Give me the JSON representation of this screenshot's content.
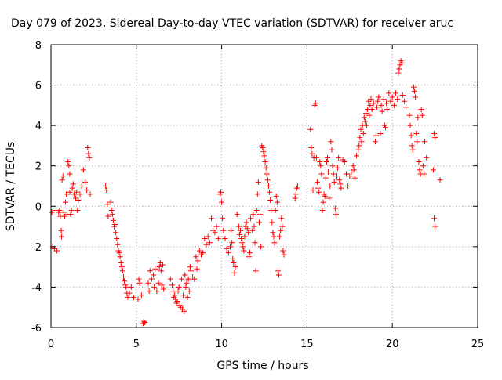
{
  "chart_data": {
    "type": "scatter",
    "title": "Day 079 of 2023, Sidereal Day-to-day VTEC variation (SDTVAR) for receiver aruc",
    "xlabel": "GPS time / hours",
    "ylabel": "SDTVAR / TECUs",
    "xlim": [
      0,
      25
    ],
    "ylim": [
      -6,
      8
    ],
    "xticks": [
      "0",
      "5",
      "10",
      "15",
      "20",
      "25"
    ],
    "yticks": [
      "-6",
      "-4",
      "-2",
      "0",
      "2",
      "4",
      "6",
      "8"
    ],
    "grid": true,
    "marker": "plus",
    "color": "#ff0000",
    "series": [
      {
        "name": "SDTVAR",
        "points": [
          [
            0.05,
            -0.3
          ],
          [
            0.1,
            -2.0
          ],
          [
            0.2,
            -2.1
          ],
          [
            0.3,
            -0.2
          ],
          [
            0.35,
            -2.2
          ],
          [
            0.45,
            -0.3
          ],
          [
            0.5,
            -0.2
          ],
          [
            0.55,
            -0.5
          ],
          [
            0.6,
            -1.2
          ],
          [
            0.62,
            -1.5
          ],
          [
            0.65,
            1.3
          ],
          [
            0.7,
            1.5
          ],
          [
            0.75,
            -0.3
          ],
          [
            0.8,
            -0.5
          ],
          [
            0.85,
            0.2
          ],
          [
            0.9,
            0.6
          ],
          [
            0.95,
            -0.4
          ],
          [
            1.0,
            2.2
          ],
          [
            1.05,
            2.0
          ],
          [
            1.1,
            1.6
          ],
          [
            1.1,
            0.7
          ],
          [
            1.15,
            -0.4
          ],
          [
            1.2,
            -0.2
          ],
          [
            1.25,
            0.9
          ],
          [
            1.3,
            1.1
          ],
          [
            1.35,
            0.6
          ],
          [
            1.4,
            0.8
          ],
          [
            1.45,
            0.4
          ],
          [
            1.5,
            0.7
          ],
          [
            1.55,
            -0.2
          ],
          [
            1.6,
            0.3
          ],
          [
            1.7,
            0.6
          ],
          [
            1.8,
            1.0
          ],
          [
            1.9,
            1.8
          ],
          [
            2.0,
            1.2
          ],
          [
            2.1,
            0.8
          ],
          [
            2.15,
            2.9
          ],
          [
            2.2,
            2.6
          ],
          [
            2.25,
            2.4
          ],
          [
            2.3,
            0.6
          ],
          [
            3.2,
            1.0
          ],
          [
            3.25,
            0.8
          ],
          [
            3.3,
            0.1
          ],
          [
            3.35,
            -0.5
          ],
          [
            3.5,
            0.2
          ],
          [
            3.55,
            -0.2
          ],
          [
            3.6,
            -0.4
          ],
          [
            3.65,
            -0.7
          ],
          [
            3.7,
            -1.0
          ],
          [
            3.75,
            -0.9
          ],
          [
            3.8,
            -1.3
          ],
          [
            3.85,
            -1.6
          ],
          [
            3.9,
            -1.9
          ],
          [
            3.95,
            -2.2
          ],
          [
            4.0,
            -2.3
          ],
          [
            4.05,
            -2.5
          ],
          [
            4.1,
            -2.8
          ],
          [
            4.15,
            -3.0
          ],
          [
            4.2,
            -3.2
          ],
          [
            4.25,
            -3.5
          ],
          [
            4.3,
            -3.7
          ],
          [
            4.35,
            -3.9
          ],
          [
            4.4,
            -4.0
          ],
          [
            4.45,
            -4.3
          ],
          [
            4.5,
            -4.5
          ],
          [
            4.6,
            -4.3
          ],
          [
            4.7,
            -4.0
          ],
          [
            4.85,
            -4.5
          ],
          [
            5.1,
            -4.6
          ],
          [
            5.15,
            -3.6
          ],
          [
            5.2,
            -3.8
          ],
          [
            5.3,
            -4.4
          ],
          [
            5.4,
            -5.8
          ],
          [
            5.45,
            -5.7
          ],
          [
            5.5,
            -5.75
          ],
          [
            5.7,
            -3.8
          ],
          [
            5.75,
            -4.2
          ],
          [
            5.8,
            -3.2
          ],
          [
            5.9,
            -3.6
          ],
          [
            6.0,
            -3.4
          ],
          [
            6.05,
            -4.0
          ],
          [
            6.1,
            -3.1
          ],
          [
            6.2,
            -4.2
          ],
          [
            6.3,
            -3.8
          ],
          [
            6.35,
            -3.0
          ],
          [
            6.4,
            -2.8
          ],
          [
            6.45,
            -3.2
          ],
          [
            6.5,
            -3.9
          ],
          [
            6.55,
            -2.9
          ],
          [
            6.6,
            -4.1
          ],
          [
            7.0,
            -3.6
          ],
          [
            7.1,
            -3.9
          ],
          [
            7.15,
            -4.2
          ],
          [
            7.2,
            -4.5
          ],
          [
            7.25,
            -4.4
          ],
          [
            7.3,
            -4.6
          ],
          [
            7.35,
            -4.8
          ],
          [
            7.4,
            -4.7
          ],
          [
            7.45,
            -4.2
          ],
          [
            7.5,
            -4.0
          ],
          [
            7.55,
            -4.9
          ],
          [
            7.6,
            -5.0
          ],
          [
            7.65,
            -3.6
          ],
          [
            7.7,
            -5.1
          ],
          [
            7.75,
            -4.4
          ],
          [
            7.8,
            -5.2
          ],
          [
            7.85,
            -3.4
          ],
          [
            7.9,
            -4.0
          ],
          [
            7.95,
            -3.8
          ],
          [
            8.0,
            -4.5
          ],
          [
            8.05,
            -3.6
          ],
          [
            8.1,
            -4.2
          ],
          [
            8.15,
            -3.0
          ],
          [
            8.2,
            -3.2
          ],
          [
            8.3,
            -3.5
          ],
          [
            8.4,
            -3.6
          ],
          [
            8.5,
            -2.5
          ],
          [
            8.55,
            -3.1
          ],
          [
            8.6,
            -2.7
          ],
          [
            8.7,
            -2.2
          ],
          [
            8.8,
            -2.4
          ],
          [
            8.9,
            -2.3
          ],
          [
            9.0,
            -1.6
          ],
          [
            9.1,
            -1.9
          ],
          [
            9.2,
            -1.5
          ],
          [
            9.3,
            -1.8
          ],
          [
            9.4,
            -0.6
          ],
          [
            9.5,
            -1.2
          ],
          [
            9.6,
            -1.3
          ],
          [
            9.7,
            -1.0
          ],
          [
            9.8,
            -1.6
          ],
          [
            9.9,
            0.6
          ],
          [
            9.95,
            0.7
          ],
          [
            10.0,
            0.2
          ],
          [
            10.05,
            -0.6
          ],
          [
            10.1,
            -1.2
          ],
          [
            10.2,
            -1.6
          ],
          [
            10.3,
            -2.1
          ],
          [
            10.4,
            -2.3
          ],
          [
            10.5,
            -2.0
          ],
          [
            10.55,
            -1.2
          ],
          [
            10.6,
            -1.8
          ],
          [
            10.65,
            -2.6
          ],
          [
            10.7,
            -2.8
          ],
          [
            10.75,
            -3.3
          ],
          [
            10.8,
            -3.0
          ],
          [
            10.9,
            -0.4
          ],
          [
            11.0,
            -1.0
          ],
          [
            11.05,
            -1.4
          ],
          [
            11.1,
            -1.2
          ],
          [
            11.15,
            -1.6
          ],
          [
            11.2,
            -1.8
          ],
          [
            11.25,
            -2.0
          ],
          [
            11.3,
            -2.2
          ],
          [
            11.35,
            -1.5
          ],
          [
            11.4,
            -1.0
          ],
          [
            11.45,
            -0.8
          ],
          [
            11.5,
            -1.1
          ],
          [
            11.55,
            -1.3
          ],
          [
            11.6,
            -2.5
          ],
          [
            11.65,
            -2.3
          ],
          [
            11.7,
            -0.6
          ],
          [
            11.8,
            -1.2
          ],
          [
            11.85,
            -0.4
          ],
          [
            11.9,
            -1.0
          ],
          [
            11.95,
            -1.8
          ],
          [
            12.0,
            -3.2
          ],
          [
            12.05,
            -0.2
          ],
          [
            12.1,
            0.6
          ],
          [
            12.15,
            1.2
          ],
          [
            12.2,
            -0.8
          ],
          [
            12.25,
            -0.4
          ],
          [
            12.3,
            -2.0
          ],
          [
            12.35,
            3.0
          ],
          [
            12.4,
            2.9
          ],
          [
            12.45,
            2.7
          ],
          [
            12.5,
            2.5
          ],
          [
            12.55,
            2.2
          ],
          [
            12.6,
            1.9
          ],
          [
            12.65,
            1.6
          ],
          [
            12.7,
            1.3
          ],
          [
            12.75,
            1.0
          ],
          [
            12.8,
            0.7
          ],
          [
            12.85,
            0.3
          ],
          [
            12.9,
            -0.2
          ],
          [
            12.95,
            -0.8
          ],
          [
            13.0,
            -1.3
          ],
          [
            13.05,
            -1.5
          ],
          [
            13.1,
            -1.8
          ],
          [
            13.15,
            -0.2
          ],
          [
            13.2,
            0.5
          ],
          [
            13.25,
            0.2
          ],
          [
            13.3,
            -3.2
          ],
          [
            13.35,
            -3.4
          ],
          [
            13.4,
            -1.5
          ],
          [
            13.45,
            -1.2
          ],
          [
            13.5,
            -0.6
          ],
          [
            13.55,
            -1.0
          ],
          [
            13.6,
            -2.2
          ],
          [
            13.65,
            -2.4
          ],
          [
            14.3,
            0.4
          ],
          [
            14.35,
            0.6
          ],
          [
            14.4,
            0.9
          ],
          [
            14.45,
            1.0
          ],
          [
            15.2,
            3.8
          ],
          [
            15.25,
            2.9
          ],
          [
            15.3,
            2.6
          ],
          [
            15.35,
            0.8
          ],
          [
            15.4,
            2.4
          ],
          [
            15.45,
            5.0
          ],
          [
            15.5,
            5.1
          ],
          [
            15.55,
            2.4
          ],
          [
            15.6,
            1.2
          ],
          [
            15.65,
            0.9
          ],
          [
            15.7,
            0.7
          ],
          [
            15.75,
            2.2
          ],
          [
            15.8,
            2.0
          ],
          [
            15.85,
            1.6
          ],
          [
            15.9,
            -0.2
          ],
          [
            15.95,
            0.2
          ],
          [
            16.0,
            0.6
          ],
          [
            16.05,
            0.5
          ],
          [
            16.1,
            1.4
          ],
          [
            16.15,
            2.2
          ],
          [
            16.2,
            2.4
          ],
          [
            16.25,
            1.7
          ],
          [
            16.3,
            0.4
          ],
          [
            16.35,
            1.0
          ],
          [
            16.4,
            3.2
          ],
          [
            16.45,
            2.8
          ],
          [
            16.5,
            2.0
          ],
          [
            16.55,
            1.6
          ],
          [
            16.6,
            1.2
          ],
          [
            16.65,
            -0.1
          ],
          [
            16.7,
            -0.4
          ],
          [
            16.75,
            1.5
          ],
          [
            16.8,
            1.9
          ],
          [
            16.85,
            2.4
          ],
          [
            16.9,
            1.3
          ],
          [
            16.95,
            1.1
          ],
          [
            17.0,
            0.9
          ],
          [
            17.1,
            2.3
          ],
          [
            17.2,
            2.2
          ],
          [
            17.3,
            1.6
          ],
          [
            17.4,
            1.0
          ],
          [
            17.5,
            1.5
          ],
          [
            17.6,
            1.7
          ],
          [
            17.7,
            2.0
          ],
          [
            17.75,
            1.8
          ],
          [
            17.8,
            1.4
          ],
          [
            17.9,
            2.5
          ],
          [
            18.0,
            2.8
          ],
          [
            18.05,
            3.0
          ],
          [
            18.1,
            3.4
          ],
          [
            18.15,
            3.8
          ],
          [
            18.2,
            3.2
          ],
          [
            18.25,
            4.0
          ],
          [
            18.3,
            3.6
          ],
          [
            18.35,
            4.4
          ],
          [
            18.4,
            4.2
          ],
          [
            18.45,
            4.6
          ],
          [
            18.5,
            4.0
          ],
          [
            18.55,
            4.8
          ],
          [
            18.6,
            5.2
          ],
          [
            18.65,
            4.5
          ],
          [
            18.7,
            5.0
          ],
          [
            18.75,
            5.3
          ],
          [
            18.8,
            4.8
          ],
          [
            18.9,
            5.1
          ],
          [
            19.0,
            3.2
          ],
          [
            19.05,
            3.5
          ],
          [
            19.1,
            4.9
          ],
          [
            19.15,
            5.2
          ],
          [
            19.2,
            5.4
          ],
          [
            19.3,
            3.6
          ],
          [
            19.35,
            5.0
          ],
          [
            19.4,
            4.7
          ],
          [
            19.5,
            5.3
          ],
          [
            19.55,
            4.0
          ],
          [
            19.6,
            3.9
          ],
          [
            19.65,
            5.1
          ],
          [
            19.7,
            4.8
          ],
          [
            19.8,
            5.6
          ],
          [
            19.9,
            5.2
          ],
          [
            20.0,
            5.4
          ],
          [
            20.1,
            5.0
          ],
          [
            20.2,
            5.6
          ],
          [
            20.3,
            5.3
          ],
          [
            20.35,
            6.6
          ],
          [
            20.4,
            6.8
          ],
          [
            20.45,
            7.0
          ],
          [
            20.5,
            7.2
          ],
          [
            20.55,
            7.1
          ],
          [
            20.6,
            5.5
          ],
          [
            20.7,
            5.2
          ],
          [
            20.8,
            4.9
          ],
          [
            21.0,
            4.5
          ],
          [
            21.05,
            4.0
          ],
          [
            21.1,
            3.5
          ],
          [
            21.15,
            3.0
          ],
          [
            21.2,
            2.8
          ],
          [
            21.25,
            5.9
          ],
          [
            21.3,
            5.7
          ],
          [
            21.35,
            5.4
          ],
          [
            21.4,
            3.6
          ],
          [
            21.45,
            3.2
          ],
          [
            21.5,
            4.4
          ],
          [
            21.55,
            2.2
          ],
          [
            21.6,
            1.8
          ],
          [
            21.65,
            1.6
          ],
          [
            21.7,
            4.8
          ],
          [
            21.75,
            4.5
          ],
          [
            21.8,
            2.0
          ],
          [
            21.85,
            1.6
          ],
          [
            21.9,
            3.2
          ],
          [
            22.0,
            2.4
          ],
          [
            22.4,
            1.8
          ],
          [
            22.45,
            3.6
          ],
          [
            22.5,
            3.4
          ],
          [
            22.45,
            -0.6
          ],
          [
            22.5,
            -1.0
          ],
          [
            22.8,
            1.3
          ]
        ]
      }
    ]
  }
}
